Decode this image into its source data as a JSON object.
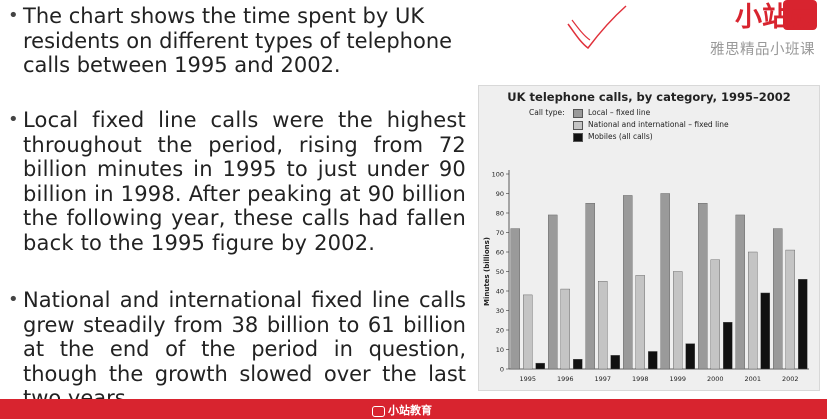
{
  "text": {
    "bullet_marker": "•",
    "p1": "The chart shows the time spent by UK residents on different types of telephone calls between 1995 and 2002.",
    "p2": "Local fixed line calls were the highest throughout the period, rising from 72 billion minutes in 1995 to just under 90 billion in 1998. After peaking at 90 billion the following year, these calls had fallen back to the 1995 figure by 2002.",
    "p3": "National and international fixed line calls grew steadily from 38 billion to 61 billion at the end of the period in question, though the growth slowed over the last two years."
  },
  "brand": {
    "logo_text": "小站赢",
    "subtitle": "雅思精品小班课",
    "footer_text": "小站教育",
    "color": "#d8242f"
  },
  "chart_data": {
    "type": "bar",
    "title": "UK telephone calls, by category, 1995–2002",
    "legend_title": "Call type:",
    "legend_position": "top-left",
    "grid": false,
    "xlabel": "",
    "ylabel": "Minutes (billions)",
    "ylim": [
      0,
      100
    ],
    "yticks": [
      0,
      10,
      20,
      30,
      40,
      50,
      60,
      70,
      80,
      90,
      100
    ],
    "categories": [
      "1995",
      "1996",
      "1997",
      "1998",
      "1999",
      "2000",
      "2001",
      "2002"
    ],
    "series": [
      {
        "name": "Local – fixed line",
        "color": "#9a9a9a",
        "values": [
          72,
          79,
          85,
          89,
          90,
          85,
          79,
          72
        ]
      },
      {
        "name": "National and international – fixed line",
        "color": "#c4c4c4",
        "values": [
          38,
          41,
          45,
          48,
          50,
          56,
          60,
          61
        ]
      },
      {
        "name": "Mobiles (all calls)",
        "color": "#111111",
        "values": [
          3,
          5,
          7,
          9,
          13,
          24,
          39,
          46
        ]
      }
    ]
  }
}
